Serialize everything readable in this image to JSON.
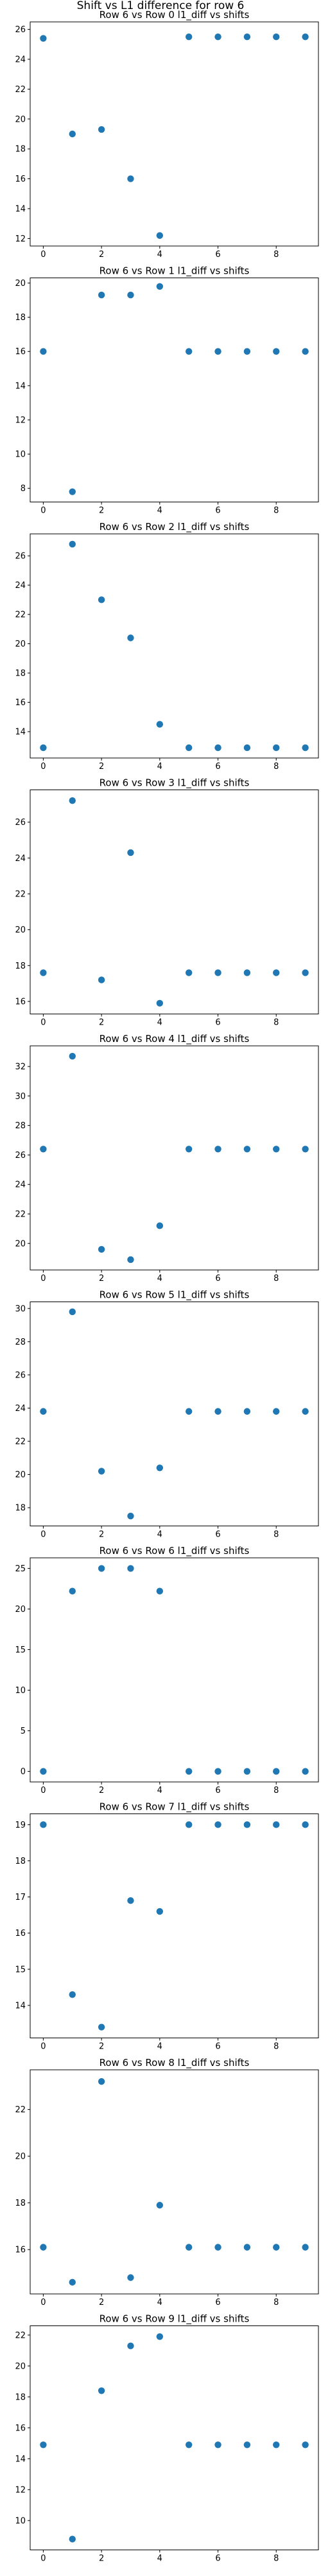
{
  "figure": {
    "suptitle": "Shift vs L1 difference for row 6"
  },
  "style": {
    "marker_color": "#1f77b4"
  },
  "chart_data": [
    {
      "type": "scatter",
      "title": "Row 6 vs Row 0 l1_diff vs shifts",
      "x": [
        0,
        1,
        2,
        3,
        4,
        5,
        6,
        7,
        8,
        9
      ],
      "y": [
        25.4,
        19.0,
        19.3,
        16.0,
        12.2,
        25.5,
        25.5,
        25.5,
        25.5,
        25.5
      ],
      "xlim": [
        -0.45,
        9.45
      ],
      "ylim": [
        11.5,
        26.5
      ],
      "xticks": [
        0,
        2,
        4,
        6,
        8
      ],
      "yticks": [
        12,
        14,
        16,
        18,
        20,
        22,
        24,
        26
      ],
      "grid": false
    },
    {
      "type": "scatter",
      "title": "Row 6 vs Row 1 l1_diff vs shifts",
      "x": [
        0,
        1,
        2,
        3,
        4,
        5,
        6,
        7,
        8,
        9
      ],
      "y": [
        16.0,
        7.8,
        19.3,
        19.3,
        19.8,
        16.0,
        16.0,
        16.0,
        16.0,
        16.0
      ],
      "xlim": [
        -0.45,
        9.45
      ],
      "ylim": [
        7.2,
        20.3
      ],
      "xticks": [
        0,
        2,
        4,
        6,
        8
      ],
      "yticks": [
        8,
        10,
        12,
        14,
        16,
        18,
        20
      ],
      "grid": false
    },
    {
      "type": "scatter",
      "title": "Row 6 vs Row 2 l1_diff vs shifts",
      "x": [
        0,
        1,
        2,
        3,
        4,
        5,
        6,
        7,
        8,
        9
      ],
      "y": [
        12.9,
        26.8,
        23.0,
        20.4,
        14.5,
        12.9,
        12.9,
        12.9,
        12.9,
        12.9
      ],
      "xlim": [
        -0.45,
        9.45
      ],
      "ylim": [
        12.2,
        27.5
      ],
      "xticks": [
        0,
        2,
        4,
        6,
        8
      ],
      "yticks": [
        14,
        16,
        18,
        20,
        22,
        24,
        26
      ],
      "grid": false
    },
    {
      "type": "scatter",
      "title": "Row 6 vs Row 3 l1_diff vs shifts",
      "x": [
        0,
        1,
        2,
        3,
        4,
        5,
        6,
        7,
        8,
        9
      ],
      "y": [
        17.6,
        27.2,
        17.2,
        24.3,
        15.9,
        17.6,
        17.6,
        17.6,
        17.6,
        17.6
      ],
      "xlim": [
        -0.45,
        9.45
      ],
      "ylim": [
        15.3,
        27.8
      ],
      "xticks": [
        0,
        2,
        4,
        6,
        8
      ],
      "yticks": [
        16,
        18,
        20,
        22,
        24,
        26
      ],
      "grid": false
    },
    {
      "type": "scatter",
      "title": "Row 6 vs Row 4 l1_diff vs shifts",
      "x": [
        0,
        1,
        2,
        3,
        4,
        5,
        6,
        7,
        8,
        9
      ],
      "y": [
        26.4,
        32.7,
        19.6,
        18.9,
        21.2,
        26.4,
        26.4,
        26.4,
        26.4,
        26.4
      ],
      "xlim": [
        -0.45,
        9.45
      ],
      "ylim": [
        18.2,
        33.4
      ],
      "xticks": [
        0,
        2,
        4,
        6,
        8
      ],
      "yticks": [
        20,
        22,
        24,
        26,
        28,
        30,
        32
      ],
      "grid": false
    },
    {
      "type": "scatter",
      "title": "Row 6 vs Row 5 l1_diff vs shifts",
      "x": [
        0,
        1,
        2,
        3,
        4,
        5,
        6,
        7,
        8,
        9
      ],
      "y": [
        23.8,
        29.8,
        20.2,
        17.5,
        20.4,
        23.8,
        23.8,
        23.8,
        23.8,
        23.8
      ],
      "xlim": [
        -0.45,
        9.45
      ],
      "ylim": [
        16.9,
        30.4
      ],
      "xticks": [
        0,
        2,
        4,
        6,
        8
      ],
      "yticks": [
        18,
        20,
        22,
        24,
        26,
        28,
        30
      ],
      "grid": false
    },
    {
      "type": "scatter",
      "title": "Row 6 vs Row 6 l1_diff vs shifts",
      "x": [
        0,
        1,
        2,
        3,
        4,
        5,
        6,
        7,
        8,
        9
      ],
      "y": [
        0.0,
        22.2,
        25.0,
        25.0,
        22.2,
        0.0,
        0.0,
        0.0,
        0.0,
        0.0
      ],
      "xlim": [
        -0.45,
        9.45
      ],
      "ylim": [
        -1.3,
        26.3
      ],
      "xticks": [
        0,
        2,
        4,
        6,
        8
      ],
      "yticks": [
        0,
        5,
        10,
        15,
        20,
        25
      ],
      "grid": false
    },
    {
      "type": "scatter",
      "title": "Row 6 vs Row 7 l1_diff vs shifts",
      "x": [
        0,
        1,
        2,
        3,
        4,
        5,
        6,
        7,
        8,
        9
      ],
      "y": [
        19.0,
        14.3,
        13.4,
        16.9,
        16.6,
        19.0,
        19.0,
        19.0,
        19.0,
        19.0
      ],
      "xlim": [
        -0.45,
        9.45
      ],
      "ylim": [
        13.1,
        19.3
      ],
      "xticks": [
        0,
        2,
        4,
        6,
        8
      ],
      "yticks": [
        14,
        15,
        16,
        17,
        18,
        19
      ],
      "grid": false
    },
    {
      "type": "scatter",
      "title": "Row 6 vs Row 8 l1_diff vs shifts",
      "x": [
        0,
        1,
        2,
        3,
        4,
        5,
        6,
        7,
        8,
        9
      ],
      "y": [
        16.1,
        14.6,
        23.2,
        14.8,
        17.9,
        16.1,
        16.1,
        16.1,
        16.1,
        16.1
      ],
      "xlim": [
        -0.45,
        9.45
      ],
      "ylim": [
        14.1,
        23.7
      ],
      "xticks": [
        0,
        2,
        4,
        6,
        8
      ],
      "yticks": [
        16,
        18,
        20,
        22
      ],
      "grid": false
    },
    {
      "type": "scatter",
      "title": "Row 6 vs Row 9 l1_diff vs shifts",
      "x": [
        0,
        1,
        2,
        3,
        4,
        5,
        6,
        7,
        8,
        9
      ],
      "y": [
        14.9,
        8.8,
        18.4,
        21.3,
        21.9,
        14.9,
        14.9,
        14.9,
        14.9,
        14.9
      ],
      "xlim": [
        -0.45,
        9.45
      ],
      "ylim": [
        8.1,
        22.6
      ],
      "xticks": [
        0,
        2,
        4,
        6,
        8
      ],
      "yticks": [
        10,
        12,
        14,
        16,
        18,
        20,
        22
      ],
      "grid": false
    }
  ]
}
